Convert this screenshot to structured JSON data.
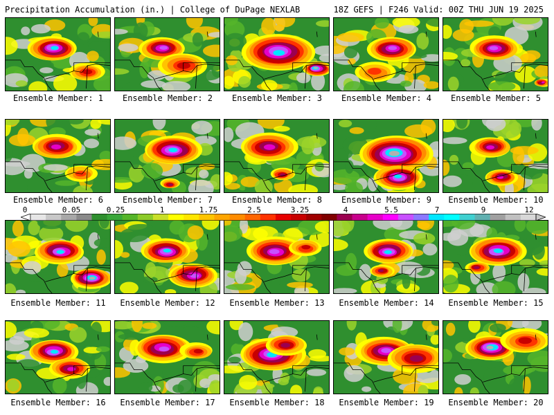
{
  "header": {
    "left": "Precipitation Accumulation (in.) | College of DuPage NEXLAB",
    "right": "18Z GEFS | F246 Valid: 00Z THU JUN 19 2025"
  },
  "colorbar": {
    "labels": [
      "0",
      "0.05",
      "0.25",
      "1",
      "1.75",
      "2.5",
      "3.25",
      "4",
      "5.5",
      "7",
      "9",
      "12"
    ],
    "colors": [
      "#e6e6e6",
      "#c8c8c8",
      "#a8a8a8",
      "#8a8a8a",
      "#2f8f2f",
      "#3aa63a",
      "#55b52a",
      "#8ccb2a",
      "#c8df2a",
      "#ffff00",
      "#ffe600",
      "#ffc400",
      "#ffa500",
      "#ff8c00",
      "#ff6600",
      "#ff3300",
      "#e60000",
      "#c80000",
      "#a00000",
      "#800000",
      "#9b0050",
      "#c8008c",
      "#e600c8",
      "#ff00ff",
      "#c850ff",
      "#8c78ff",
      "#00e6ff",
      "#00ffff",
      "#40d0d0",
      "#60b0b0",
      "#a0a0a0",
      "#c0c0c0",
      "#d8d8d8"
    ]
  },
  "members": [
    {
      "label": "Ensemble Member: 1"
    },
    {
      "label": "Ensemble Member: 2"
    },
    {
      "label": "Ensemble Member: 3"
    },
    {
      "label": "Ensemble Member: 4"
    },
    {
      "label": "Ensemble Member: 5"
    },
    {
      "label": "Ensemble Member: 6"
    },
    {
      "label": "Ensemble Member: 7"
    },
    {
      "label": "Ensemble Member: 8"
    },
    {
      "label": "Ensemble Member: 9"
    },
    {
      "label": "Ensemble Member: 10"
    },
    {
      "label": "Ensemble Member: 11"
    },
    {
      "label": "Ensemble Member: 12"
    },
    {
      "label": "Ensemble Member: 13"
    },
    {
      "label": "Ensemble Member: 14"
    },
    {
      "label": "Ensemble Member: 15"
    },
    {
      "label": "Ensemble Member: 16"
    },
    {
      "label": "Ensemble Member: 17"
    },
    {
      "label": "Ensemble Member: 18"
    },
    {
      "label": "Ensemble Member: 19"
    },
    {
      "label": "Ensemble Member: 20"
    }
  ]
}
